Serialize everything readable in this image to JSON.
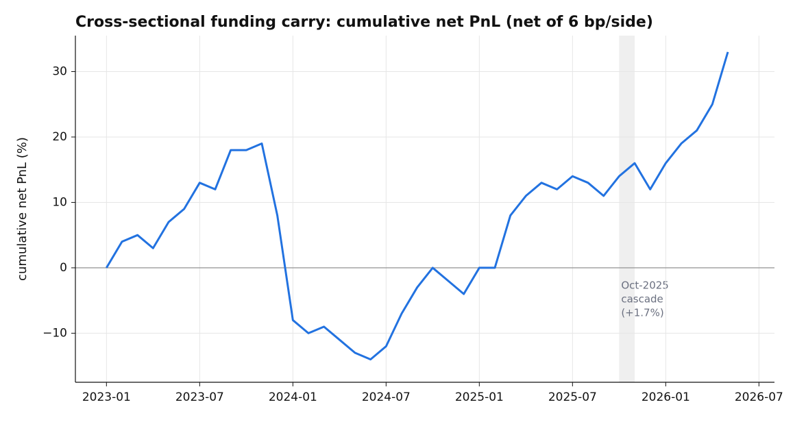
{
  "chart_data": {
    "type": "line",
    "title": "Cross-sectional funding carry: cumulative net PnL (net of 6 bp/side)",
    "y_label": "cumulative net PnL (%)",
    "x": [
      "2023-01",
      "2023-02",
      "2023-03",
      "2023-04",
      "2023-05",
      "2023-06",
      "2023-07",
      "2023-08",
      "2023-09",
      "2023-10",
      "2023-11",
      "2023-12",
      "2024-01",
      "2024-02",
      "2024-03",
      "2024-04",
      "2024-05",
      "2024-06",
      "2024-07",
      "2024-08",
      "2024-09",
      "2024-10",
      "2024-11",
      "2024-12",
      "2025-01",
      "2025-02",
      "2025-03",
      "2025-04",
      "2025-05",
      "2025-06",
      "2025-07",
      "2025-08",
      "2025-09",
      "2025-10",
      "2025-11",
      "2025-12",
      "2026-01",
      "2026-02",
      "2026-03",
      "2026-04",
      "2026-05"
    ],
    "series": [
      {
        "name": "cumulative net PnL",
        "color": "#2272e0",
        "values": [
          0,
          4,
          5,
          3,
          7,
          9,
          13,
          12,
          18,
          18,
          19,
          8,
          -8,
          -10,
          -9,
          -11,
          -13,
          -14,
          -12,
          -7,
          -3,
          0,
          -2,
          -4,
          0,
          0,
          8,
          11,
          13,
          12,
          14,
          13,
          11,
          14,
          16,
          12,
          16,
          19,
          21,
          25,
          33
        ]
      }
    ],
    "xlim": [
      "2022-11",
      "2026-08"
    ],
    "xticks": [
      "2023-01",
      "2023-07",
      "2024-01",
      "2024-07",
      "2025-01",
      "2025-07",
      "2026-01",
      "2026-07"
    ],
    "ylim": [
      -17.5,
      35.5
    ],
    "yticks": [
      {
        "value": -10,
        "label": "−10"
      },
      0,
      10,
      20,
      30
    ],
    "grid": true,
    "zero_line": true,
    "shaded_span": {
      "start": "2025-10",
      "end": "2025-11",
      "label": [
        "Oct-2025",
        "cascade",
        "(+1.7%)"
      ]
    }
  }
}
